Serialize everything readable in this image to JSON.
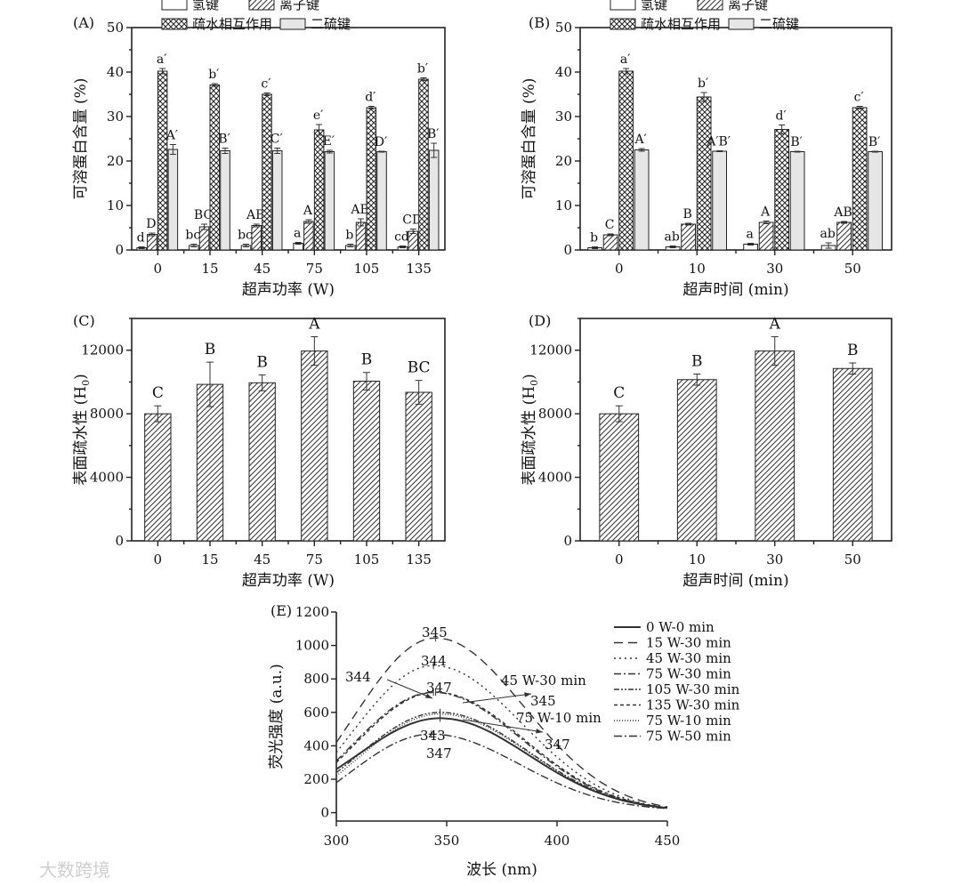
{
  "watermark": "大数跨境",
  "chart_data": [
    {
      "panel": "(A)",
      "type": "bar",
      "xlabel": "超声功率 (W)",
      "ylabel": "可溶蛋白含量 (%)",
      "ylim": [
        0,
        50
      ],
      "yticks": [
        "0",
        "10",
        "20",
        "30",
        "40",
        "50"
      ],
      "categories": [
        "0",
        "15",
        "45",
        "75",
        "105",
        "135"
      ],
      "legend": [
        "氢键",
        "离子键",
        "疏水相互作用",
        "二硫键"
      ],
      "series": [
        {
          "name": "氢键",
          "fill": "white",
          "values": [
            0.5,
            1.0,
            1.0,
            1.5,
            1.0,
            0.7
          ],
          "err": [
            0.2,
            0.3,
            0.3,
            0.2,
            0.3,
            0.2
          ],
          "labels": [
            "d",
            "bc",
            "bc",
            "a",
            "b",
            "cd"
          ]
        },
        {
          "name": "离子键",
          "fill": "diag",
          "values": [
            3.5,
            5.2,
            5.5,
            6.4,
            6.2,
            4.2
          ],
          "err": [
            0.3,
            0.6,
            0.3,
            0.4,
            0.8,
            0.5
          ],
          "labels": [
            "D",
            "BC",
            "AB",
            "A",
            "AB",
            "CD"
          ]
        },
        {
          "name": "疏水相互作用",
          "fill": "cross",
          "values": [
            40.2,
            37.1,
            35.0,
            27.0,
            32.0,
            38.4
          ],
          "err": [
            0.6,
            0.3,
            0.3,
            1.2,
            0.3,
            0.3
          ],
          "labels": [
            "a′",
            "b′",
            "c′",
            "e′",
            "d′",
            "b′"
          ]
        },
        {
          "name": "二硫键",
          "fill": "light",
          "values": [
            22.6,
            22.3,
            22.3,
            22.1,
            22.1,
            22.4
          ],
          "err": [
            1.1,
            0.6,
            0.6,
            0.3,
            0.1,
            1.6
          ],
          "labels": [
            "A′",
            "B′",
            "C′",
            "E′",
            "D′",
            "B′"
          ]
        }
      ]
    },
    {
      "panel": "(B)",
      "type": "bar",
      "xlabel": "超声时间 (min)",
      "ylabel": "可溶蛋白含量 (%)",
      "ylim": [
        0,
        50
      ],
      "yticks": [
        "0",
        "10",
        "20",
        "30",
        "40",
        "50"
      ],
      "categories": [
        "0",
        "10",
        "30",
        "50"
      ],
      "legend": [
        "氢键",
        "离子键",
        "疏水相互作用",
        "二硫键"
      ],
      "series": [
        {
          "name": "氢键",
          "fill": "white",
          "values": [
            0.5,
            0.7,
            1.3,
            1.0
          ],
          "err": [
            0.2,
            0.2,
            0.2,
            0.6
          ],
          "labels": [
            "b",
            "ab",
            "a",
            "ab"
          ]
        },
        {
          "name": "离子键",
          "fill": "diag",
          "values": [
            3.4,
            5.8,
            6.2,
            6.2
          ],
          "err": [
            0.2,
            0.2,
            0.3,
            0.2
          ],
          "labels": [
            "C",
            "B",
            "A",
            "AB"
          ]
        },
        {
          "name": "疏水相互作用",
          "fill": "cross",
          "values": [
            40.2,
            34.4,
            27.1,
            32.0
          ],
          "err": [
            0.6,
            1.0,
            1.0,
            0.3
          ],
          "labels": [
            "a′",
            "b′",
            "d′",
            "c′"
          ]
        },
        {
          "name": "二硫键",
          "fill": "light",
          "values": [
            22.5,
            22.2,
            22.1,
            22.1
          ],
          "err": [
            0.3,
            0.1,
            0.1,
            0.1
          ],
          "labels": [
            "A′",
            "A′B′",
            "B′",
            "B′"
          ]
        }
      ]
    },
    {
      "panel": "(C)",
      "type": "bar",
      "xlabel": "超声功率 (W)",
      "ylabel": "表面疏水性 (H0)",
      "ylim": [
        0,
        14000
      ],
      "yticks": [
        "0",
        "4000",
        "8000",
        "12000"
      ],
      "categories": [
        "0",
        "15",
        "45",
        "75",
        "105",
        "135"
      ],
      "values": [
        8000,
        9850,
        9950,
        11950,
        10050,
        9350
      ],
      "err": [
        500,
        1400,
        500,
        900,
        550,
        750
      ],
      "labels": [
        "C",
        "B",
        "B",
        "A",
        "B",
        "BC"
      ]
    },
    {
      "panel": "(D)",
      "type": "bar",
      "xlabel": "超声时间 (min)",
      "ylabel": "表面疏水性 (H0)",
      "ylim": [
        0,
        14000
      ],
      "yticks": [
        "0",
        "4000",
        "8000",
        "12000"
      ],
      "categories": [
        "0",
        "10",
        "30",
        "50"
      ],
      "values": [
        8000,
        10150,
        11950,
        10850
      ],
      "err": [
        500,
        350,
        900,
        350
      ],
      "labels": [
        "C",
        "B",
        "A",
        "B"
      ]
    },
    {
      "panel": "(E)",
      "type": "line",
      "xlabel": "波长 (nm)",
      "ylabel": "荧光强度 (a.u.)",
      "xlim": [
        300,
        450
      ],
      "ylim": [
        -50,
        1200
      ],
      "xticks": [
        "300",
        "350",
        "400",
        "450"
      ],
      "yticks": [
        "0",
        "200",
        "400",
        "600",
        "800",
        "1000",
        "1200"
      ],
      "series": [
        {
          "name": "0 W-0 min",
          "peak_x": 347,
          "peak_y": 565,
          "start_y": 260,
          "end_y": 28,
          "dash": ""
        },
        {
          "name": "15 W-30 min",
          "peak_x": 345,
          "peak_y": 1045,
          "start_y": 420,
          "end_y": 35,
          "dash": "10,6"
        },
        {
          "name": "45 W-30 min",
          "peak_x": 344,
          "peak_y": 880,
          "start_y": 360,
          "end_y": 30,
          "dash": "2,4"
        },
        {
          "name": "75 W-30 min",
          "peak_x": 344,
          "peak_y": 720,
          "start_y": 310,
          "end_y": 30,
          "dash": "8,3,2,3"
        },
        {
          "name": "105 W-30 min",
          "peak_x": 347,
          "peak_y": 600,
          "start_y": 240,
          "end_y": 28,
          "dash": "6,2,2,2,2,2"
        },
        {
          "name": "135 W-30 min",
          "peak_x": 345,
          "peak_y": 720,
          "start_y": 300,
          "end_y": 30,
          "dash": "4,3"
        },
        {
          "name": "75 W-10 min",
          "peak_x": 347,
          "peak_y": 590,
          "start_y": 220,
          "end_y": 28,
          "dash": "1,2"
        },
        {
          "name": "75 W-50 min",
          "peak_x": 343,
          "peak_y": 470,
          "start_y": 180,
          "end_y": 25,
          "dash": "9,3,2,3"
        }
      ],
      "annotations": [
        "345",
        "344",
        "344",
        "347",
        "345",
        "347",
        "343",
        "347",
        "45 W-30 min",
        "75 W-10 min"
      ]
    }
  ]
}
